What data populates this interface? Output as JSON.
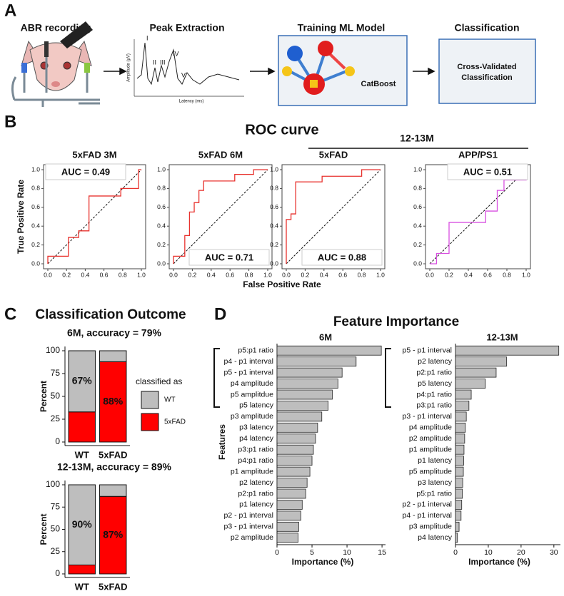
{
  "panel_labels": [
    "A",
    "B",
    "C",
    "D"
  ],
  "pipeline": {
    "stages": [
      "ABR recording",
      "Peak Extraction",
      "Training ML Model",
      "Classification"
    ],
    "model_name": "CatBoost",
    "result_lines": [
      "Cross-Validated",
      "Classification"
    ],
    "peak_plot": {
      "peaks": [
        "I",
        "II",
        "III",
        "IV",
        "V"
      ],
      "xlabel": "Latency (ms)",
      "ylabel": "Amplitude (µV)"
    }
  },
  "roc_panel": {
    "title": "ROC curve",
    "group_label": "12-13M",
    "xlabel": "False Positive Rate",
    "ylabel": "True Positive Rate"
  },
  "outcome_panel": {
    "title": "Classification Outcome"
  },
  "importance_panel": {
    "title": "Feature Importance"
  },
  "chart_data": [
    {
      "type": "line",
      "title": "5xFAD 3M",
      "annotation": "AUC = 0.49",
      "annotation_corner": "top-left",
      "xlim": [
        0,
        1
      ],
      "ylim": [
        0,
        1
      ],
      "xticks": [
        {
          "value": 0,
          "label": "0.0"
        },
        0.2,
        0.4,
        0.6,
        0.8,
        {
          "value": 1,
          "label": "1.0"
        }
      ],
      "yticks": [
        {
          "value": 0,
          "label": "0.0"
        },
        0.2,
        0.4,
        0.6,
        0.8,
        {
          "value": 1,
          "label": "1.0"
        }
      ],
      "series": [
        {
          "color": "#e8322e",
          "x": [
            0,
            0,
            0.22,
            0.22,
            0.33,
            0.33,
            0.44,
            0.44,
            0.78,
            0.78,
            0.97,
            0.97,
            1
          ],
          "values": [
            0,
            0.08,
            0.08,
            0.28,
            0.28,
            0.35,
            0.35,
            0.72,
            0.72,
            0.8,
            0.8,
            1,
            1
          ]
        }
      ]
    },
    {
      "type": "line",
      "title": "5xFAD 6M",
      "annotation": "AUC = 0.71",
      "annotation_corner": "bottom-right",
      "xlim": [
        0,
        1
      ],
      "ylim": [
        0,
        1
      ],
      "xticks": [
        {
          "value": 0,
          "label": "0.0"
        },
        0.2,
        0.4,
        0.6,
        0.8,
        {
          "value": 1,
          "label": "1.0"
        }
      ],
      "yticks": [
        {
          "value": 0,
          "label": "0.0"
        },
        0.2,
        0.4,
        0.6,
        0.8,
        {
          "value": 1,
          "label": "1.0"
        }
      ],
      "series": [
        {
          "color": "#e8322e",
          "x": [
            0,
            0,
            0.12,
            0.12,
            0.17,
            0.17,
            0.22,
            0.22,
            0.27,
            0.27,
            0.32,
            0.32,
            0.65,
            0.65,
            0.85,
            0.85,
            1
          ],
          "values": [
            0,
            0.08,
            0.08,
            0.3,
            0.3,
            0.55,
            0.55,
            0.65,
            0.65,
            0.78,
            0.78,
            0.88,
            0.88,
            0.95,
            0.95,
            1,
            1
          ]
        }
      ]
    },
    {
      "type": "line",
      "title": "5xFAD",
      "annotation": "AUC = 0.88",
      "annotation_corner": "bottom-right",
      "xlim": [
        0,
        1
      ],
      "ylim": [
        0,
        1
      ],
      "xticks": [
        {
          "value": 0,
          "label": "0.0"
        },
        0.2,
        0.4,
        0.6,
        0.8,
        {
          "value": 1,
          "label": "1.0"
        }
      ],
      "yticks": [
        {
          "value": 0,
          "label": "0.0"
        },
        0.2,
        0.4,
        0.6,
        0.8,
        {
          "value": 1,
          "label": "1.0"
        }
      ],
      "series": [
        {
          "color": "#e8322e",
          "x": [
            0,
            0,
            0.05,
            0.05,
            0.1,
            0.1,
            0.38,
            0.38,
            0.8,
            0.8,
            1
          ],
          "values": [
            0,
            0.47,
            0.47,
            0.53,
            0.53,
            0.87,
            0.87,
            0.93,
            0.93,
            1,
            1
          ]
        }
      ]
    },
    {
      "type": "line",
      "title": "APP/PS1",
      "annotation": "AUC = 0.51",
      "annotation_corner": "top-right",
      "xlim": [
        0,
        1
      ],
      "ylim": [
        0,
        1
      ],
      "xticks": [
        {
          "value": 0,
          "label": "0.0"
        },
        0.2,
        0.4,
        0.6,
        0.8,
        {
          "value": 1,
          "label": "1.0"
        }
      ],
      "yticks": [
        {
          "value": 0,
          "label": "0.0"
        },
        0.2,
        0.4,
        0.6,
        0.8,
        {
          "value": 1,
          "label": "1.0"
        }
      ],
      "series": [
        {
          "color": "#d84fe0",
          "x": [
            0,
            0.07,
            0.07,
            0.2,
            0.2,
            0.58,
            0.58,
            0.7,
            0.7,
            0.77,
            0.77,
            1,
            1
          ],
          "values": [
            0,
            0,
            0.11,
            0.11,
            0.44,
            0.44,
            0.56,
            0.56,
            0.78,
            0.78,
            0.89,
            0.89,
            1
          ]
        }
      ]
    },
    {
      "type": "stacked_bar",
      "title": "6M, accuracy = 79%",
      "ylabel": "Percent",
      "legend_title": "classified as",
      "categories": [
        "WT",
        "5xFAD"
      ],
      "ylim": [
        0,
        100
      ],
      "yticks": [
        0,
        25,
        50,
        75,
        100
      ],
      "series": [
        {
          "name": "WT",
          "color": "#bebebe",
          "values": [
            67,
            12
          ],
          "value_labels": [
            "67%",
            null
          ]
        },
        {
          "name": "5xFAD",
          "color": "#ff0000",
          "values": [
            33,
            88
          ],
          "value_labels": [
            null,
            "88%"
          ]
        }
      ]
    },
    {
      "type": "stacked_bar",
      "title": "12-13M, accuracy = 89%",
      "ylabel": "Percent",
      "categories": [
        "WT",
        "5xFAD"
      ],
      "ylim": [
        0,
        100
      ],
      "yticks": [
        0,
        25,
        50,
        75,
        100
      ],
      "series": [
        {
          "color": "#bebebe",
          "values": [
            90,
            13
          ],
          "value_labels": [
            "90%",
            null
          ]
        },
        {
          "color": "#ff0000",
          "values": [
            10,
            87
          ],
          "value_labels": [
            null,
            "87%"
          ]
        }
      ]
    },
    {
      "type": "hbar",
      "title": "6M",
      "xlabel": "Importance (%)",
      "ylabel": "Features",
      "color": "#bebebe",
      "categories": [
        "p5:p1 ratio",
        "p4 - p1 interval",
        "p5 - p1 interval",
        "p4 amplitude",
        "p5 amplitdue",
        "p5 latency",
        "p3 amplitude",
        "p3 latency",
        "p4 latency",
        "p3:p1 ratio",
        "p4:p1 ratio",
        "p1 amplitude",
        "p2 latency",
        "p2:p1 ratio",
        "p1 latency",
        "p2 - p1 interval",
        "p3 - p1 interval",
        "p2 amplitude"
      ],
      "values": [
        14.9,
        11.3,
        9.3,
        8.7,
        7.9,
        7.3,
        6.4,
        5.8,
        5.5,
        5.2,
        5.0,
        4.7,
        4.3,
        4.1,
        3.6,
        3.4,
        3.1,
        3.0
      ],
      "xlim": [
        0,
        15.5
      ],
      "xticks": [
        0,
        5,
        10,
        15
      ]
    },
    {
      "type": "hbar",
      "title": "12-13M",
      "xlabel": "Importance (%)",
      "color": "#bebebe",
      "categories": [
        "p5 - p1 interval",
        "p2 latency",
        "p2:p1 ratio",
        "p5 latency",
        "p4:p1 ratio",
        "p3:p1 ratio",
        "p3 - p1 interval",
        "p4 amplitude",
        "p2 amplitude",
        "p1 amplitude",
        "p1 latency",
        "p5 amplitude",
        "p3 latency",
        "p5:p1 ratio",
        "p2 - p1 interval",
        "p4 - p1 interval",
        "p3 amplitude",
        "p4 latency"
      ],
      "values": [
        31.5,
        15.6,
        12.4,
        9.1,
        4.8,
        4.1,
        3.3,
        3.0,
        2.8,
        2.6,
        2.5,
        2.4,
        2.2,
        2.1,
        1.9,
        1.7,
        1.1,
        0.6
      ],
      "xlim": [
        0,
        32
      ],
      "xticks": [
        0,
        10,
        20,
        30
      ]
    }
  ]
}
